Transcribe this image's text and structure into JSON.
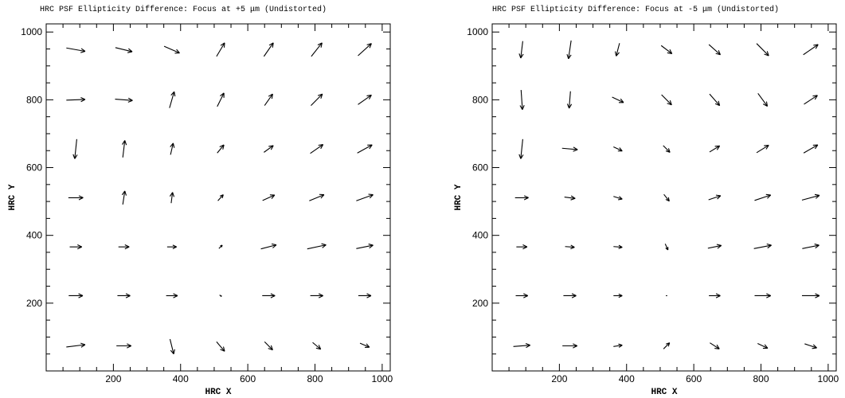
{
  "chart_data": [
    {
      "type": "vector",
      "title": "HRC PSF Ellipticity Difference: Focus at +5 μm (Undistorted)",
      "xlabel": "HRC X",
      "ylabel": "HRC Y",
      "xlim": [
        0,
        1024
      ],
      "ylim": [
        0,
        1024
      ],
      "xticks": [
        200,
        400,
        600,
        800,
        1000
      ],
      "yticks": [
        200,
        400,
        600,
        800,
        1000
      ],
      "vectors": [
        {
          "x": 88,
          "y": 74,
          "dx": 56,
          "dy": 7
        },
        {
          "x": 231,
          "y": 74,
          "dx": 44,
          "dy": 0
        },
        {
          "x": 374,
          "y": 72,
          "dx": 11,
          "dy": -44
        },
        {
          "x": 519,
          "y": 72,
          "dx": 24,
          "dy": -28
        },
        {
          "x": 662,
          "y": 74,
          "dx": 24,
          "dy": -24
        },
        {
          "x": 805,
          "y": 74,
          "dx": 24,
          "dy": -20
        },
        {
          "x": 948,
          "y": 76,
          "dx": 28,
          "dy": -12
        },
        {
          "x": 88,
          "y": 222,
          "dx": 42,
          "dy": 0
        },
        {
          "x": 231,
          "y": 222,
          "dx": 38,
          "dy": 0
        },
        {
          "x": 374,
          "y": 222,
          "dx": 34,
          "dy": 0
        },
        {
          "x": 519,
          "y": 222,
          "dx": 6,
          "dy": -4
        },
        {
          "x": 662,
          "y": 222,
          "dx": 38,
          "dy": 0
        },
        {
          "x": 805,
          "y": 222,
          "dx": 38,
          "dy": 0
        },
        {
          "x": 948,
          "y": 222,
          "dx": 38,
          "dy": 0
        },
        {
          "x": 88,
          "y": 366,
          "dx": 36,
          "dy": 0
        },
        {
          "x": 231,
          "y": 366,
          "dx": 32,
          "dy": 0
        },
        {
          "x": 374,
          "y": 366,
          "dx": 28,
          "dy": 0
        },
        {
          "x": 519,
          "y": 366,
          "dx": 10,
          "dy": 10
        },
        {
          "x": 662,
          "y": 366,
          "dx": 46,
          "dy": 12
        },
        {
          "x": 805,
          "y": 366,
          "dx": 56,
          "dy": 12
        },
        {
          "x": 948,
          "y": 366,
          "dx": 50,
          "dy": 10
        },
        {
          "x": 88,
          "y": 511,
          "dx": 44,
          "dy": 0
        },
        {
          "x": 231,
          "y": 511,
          "dx": 6,
          "dy": 40
        },
        {
          "x": 374,
          "y": 511,
          "dx": 4,
          "dy": 32
        },
        {
          "x": 519,
          "y": 511,
          "dx": 16,
          "dy": 18
        },
        {
          "x": 662,
          "y": 511,
          "dx": 36,
          "dy": 16
        },
        {
          "x": 805,
          "y": 511,
          "dx": 44,
          "dy": 18
        },
        {
          "x": 948,
          "y": 511,
          "dx": 50,
          "dy": 18
        },
        {
          "x": 88,
          "y": 655,
          "dx": -6,
          "dy": -58
        },
        {
          "x": 231,
          "y": 655,
          "dx": 6,
          "dy": 50
        },
        {
          "x": 374,
          "y": 655,
          "dx": 8,
          "dy": 34
        },
        {
          "x": 519,
          "y": 655,
          "dx": 20,
          "dy": 24
        },
        {
          "x": 662,
          "y": 655,
          "dx": 28,
          "dy": 20
        },
        {
          "x": 805,
          "y": 655,
          "dx": 38,
          "dy": 26
        },
        {
          "x": 948,
          "y": 655,
          "dx": 44,
          "dy": 24
        },
        {
          "x": 88,
          "y": 800,
          "dx": 56,
          "dy": 2
        },
        {
          "x": 231,
          "y": 800,
          "dx": 52,
          "dy": -4
        },
        {
          "x": 374,
          "y": 800,
          "dx": 14,
          "dy": 48
        },
        {
          "x": 519,
          "y": 800,
          "dx": 20,
          "dy": 40
        },
        {
          "x": 662,
          "y": 800,
          "dx": 24,
          "dy": 34
        },
        {
          "x": 805,
          "y": 800,
          "dx": 34,
          "dy": 34
        },
        {
          "x": 948,
          "y": 800,
          "dx": 40,
          "dy": 28
        },
        {
          "x": 88,
          "y": 948,
          "dx": 56,
          "dy": -10
        },
        {
          "x": 231,
          "y": 948,
          "dx": 50,
          "dy": -12
        },
        {
          "x": 374,
          "y": 948,
          "dx": 46,
          "dy": -20
        },
        {
          "x": 519,
          "y": 948,
          "dx": 24,
          "dy": 40
        },
        {
          "x": 662,
          "y": 948,
          "dx": 28,
          "dy": 40
        },
        {
          "x": 805,
          "y": 948,
          "dx": 32,
          "dy": 40
        },
        {
          "x": 948,
          "y": 948,
          "dx": 40,
          "dy": 36
        }
      ]
    },
    {
      "type": "vector",
      "title": "HRC PSF Ellipticity Difference: Focus at -5 μm (Undistorted)",
      "xlabel": "HRC X",
      "ylabel": "HRC Y",
      "xlim": [
        0,
        1024
      ],
      "ylim": [
        0,
        1024
      ],
      "xticks": [
        200,
        400,
        600,
        800,
        1000
      ],
      "yticks": [
        200,
        400,
        600,
        800,
        1000
      ],
      "vectors": [
        {
          "x": 88,
          "y": 74,
          "dx": 50,
          "dy": 4
        },
        {
          "x": 231,
          "y": 74,
          "dx": 44,
          "dy": 0
        },
        {
          "x": 374,
          "y": 74,
          "dx": 26,
          "dy": 4
        },
        {
          "x": 519,
          "y": 74,
          "dx": 18,
          "dy": 18
        },
        {
          "x": 662,
          "y": 74,
          "dx": 28,
          "dy": -18
        },
        {
          "x": 805,
          "y": 74,
          "dx": 30,
          "dy": -14
        },
        {
          "x": 948,
          "y": 74,
          "dx": 36,
          "dy": -12
        },
        {
          "x": 88,
          "y": 222,
          "dx": 36,
          "dy": 0
        },
        {
          "x": 231,
          "y": 222,
          "dx": 38,
          "dy": 0
        },
        {
          "x": 374,
          "y": 222,
          "dx": 26,
          "dy": 0
        },
        {
          "x": 519,
          "y": 222,
          "dx": 4,
          "dy": 0
        },
        {
          "x": 662,
          "y": 222,
          "dx": 34,
          "dy": 0
        },
        {
          "x": 805,
          "y": 222,
          "dx": 48,
          "dy": 0
        },
        {
          "x": 948,
          "y": 222,
          "dx": 52,
          "dy": 0
        },
        {
          "x": 88,
          "y": 366,
          "dx": 32,
          "dy": 0
        },
        {
          "x": 231,
          "y": 366,
          "dx": 28,
          "dy": -2
        },
        {
          "x": 374,
          "y": 366,
          "dx": 26,
          "dy": -2
        },
        {
          "x": 519,
          "y": 366,
          "dx": 8,
          "dy": -18
        },
        {
          "x": 662,
          "y": 366,
          "dx": 40,
          "dy": 8
        },
        {
          "x": 805,
          "y": 366,
          "dx": 52,
          "dy": 10
        },
        {
          "x": 948,
          "y": 366,
          "dx": 50,
          "dy": 10
        },
        {
          "x": 88,
          "y": 511,
          "dx": 40,
          "dy": 0
        },
        {
          "x": 231,
          "y": 511,
          "dx": 32,
          "dy": -4
        },
        {
          "x": 374,
          "y": 511,
          "dx": 26,
          "dy": -8
        },
        {
          "x": 519,
          "y": 511,
          "dx": 16,
          "dy": -20
        },
        {
          "x": 662,
          "y": 511,
          "dx": 36,
          "dy": 12
        },
        {
          "x": 805,
          "y": 511,
          "dx": 48,
          "dy": 16
        },
        {
          "x": 948,
          "y": 511,
          "dx": 52,
          "dy": 14
        },
        {
          "x": 88,
          "y": 655,
          "dx": -6,
          "dy": -58
        },
        {
          "x": 231,
          "y": 655,
          "dx": 46,
          "dy": -4
        },
        {
          "x": 374,
          "y": 655,
          "dx": 26,
          "dy": -12
        },
        {
          "x": 519,
          "y": 655,
          "dx": 20,
          "dy": -20
        },
        {
          "x": 662,
          "y": 655,
          "dx": 30,
          "dy": 18
        },
        {
          "x": 805,
          "y": 655,
          "dx": 36,
          "dy": 22
        },
        {
          "x": 948,
          "y": 655,
          "dx": 42,
          "dy": 24
        },
        {
          "x": 88,
          "y": 800,
          "dx": 4,
          "dy": -58
        },
        {
          "x": 231,
          "y": 800,
          "dx": -4,
          "dy": -50
        },
        {
          "x": 374,
          "y": 800,
          "dx": 34,
          "dy": -16
        },
        {
          "x": 519,
          "y": 800,
          "dx": 30,
          "dy": -30
        },
        {
          "x": 662,
          "y": 800,
          "dx": 30,
          "dy": -34
        },
        {
          "x": 805,
          "y": 800,
          "dx": 28,
          "dy": -38
        },
        {
          "x": 948,
          "y": 800,
          "dx": 40,
          "dy": 26
        },
        {
          "x": 88,
          "y": 948,
          "dx": -6,
          "dy": -50
        },
        {
          "x": 231,
          "y": 948,
          "dx": -8,
          "dy": -54
        },
        {
          "x": 374,
          "y": 948,
          "dx": -10,
          "dy": -38
        },
        {
          "x": 519,
          "y": 948,
          "dx": 32,
          "dy": -24
        },
        {
          "x": 662,
          "y": 948,
          "dx": 34,
          "dy": -30
        },
        {
          "x": 805,
          "y": 948,
          "dx": 36,
          "dy": -36
        },
        {
          "x": 948,
          "y": 948,
          "dx": 44,
          "dy": 30
        }
      ]
    }
  ]
}
